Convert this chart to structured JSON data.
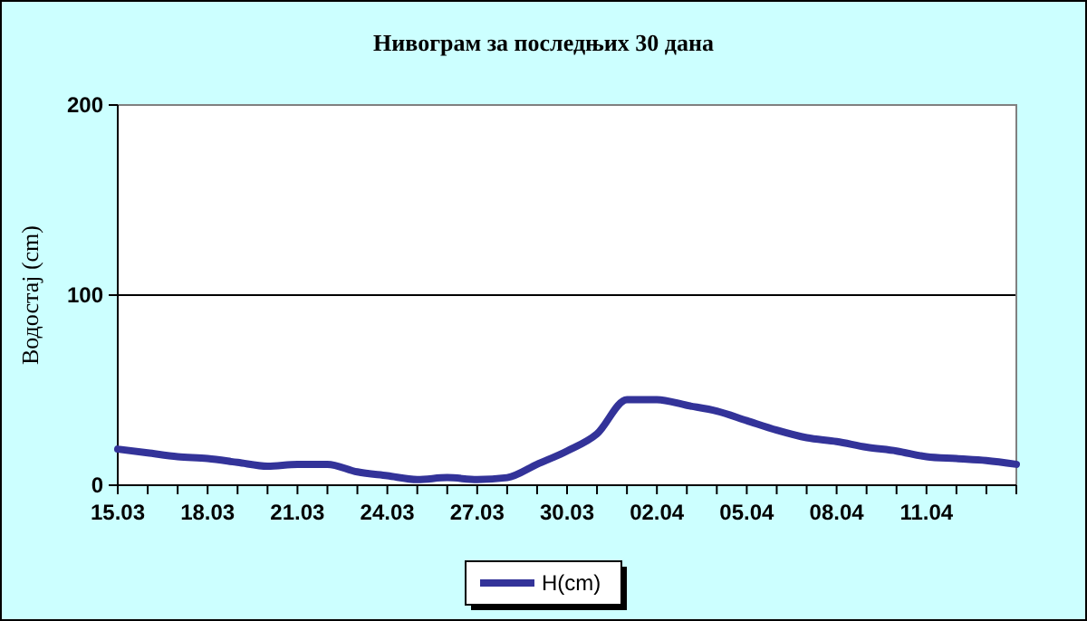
{
  "chart_data": {
    "type": "line",
    "title": "Нивограм за последњих 30 дана",
    "ylabel": "Водостај (cm)",
    "x": [
      "--03-15",
      "--03-16",
      "--03-17",
      "--03-18",
      "--03-19",
      "--03-20",
      "--03-21",
      "--03-22",
      "--03-23",
      "--03-24",
      "--03-25",
      "--03-26",
      "--03-27",
      "--03-28",
      "--03-29",
      "--03-30",
      "--03-31",
      "--04-01",
      "--04-02",
      "--04-03",
      "--04-04",
      "--04-05",
      "--04-06",
      "--04-07",
      "--04-08",
      "--04-09",
      "--04-10",
      "--04-11",
      "--04-12",
      "--04-13",
      "--04-14"
    ],
    "series": [
      {
        "name": "H(cm)",
        "color": "#333399",
        "values": [
          19,
          17,
          15,
          14,
          12,
          10,
          11,
          11,
          7,
          5,
          3,
          4,
          3,
          4,
          11,
          18,
          27,
          45,
          45,
          42,
          39,
          34,
          29,
          25,
          23,
          20,
          18,
          15,
          14,
          13,
          11
        ]
      }
    ],
    "xlim": [
      "--03-15",
      "--04-14"
    ],
    "xticks": [
      {
        "value": "--03-15",
        "label": "15.03"
      },
      {
        "value": "--03-16",
        "label": null
      },
      {
        "value": "--03-17",
        "label": null
      },
      {
        "value": "--03-18",
        "label": "18.03"
      },
      {
        "value": "--03-19",
        "label": null
      },
      {
        "value": "--03-20",
        "label": null
      },
      {
        "value": "--03-21",
        "label": "21.03"
      },
      {
        "value": "--03-22",
        "label": null
      },
      {
        "value": "--03-23",
        "label": null
      },
      {
        "value": "--03-24",
        "label": "24.03"
      },
      {
        "value": "--03-25",
        "label": null
      },
      {
        "value": "--03-26",
        "label": null
      },
      {
        "value": "--03-27",
        "label": "27.03"
      },
      {
        "value": "--03-28",
        "label": null
      },
      {
        "value": "--03-29",
        "label": null
      },
      {
        "value": "--03-30",
        "label": "30.03"
      },
      {
        "value": "--03-31",
        "label": null
      },
      {
        "value": "--04-01",
        "label": null
      },
      {
        "value": "--04-02",
        "label": "02.04"
      },
      {
        "value": "--04-03",
        "label": null
      },
      {
        "value": "--04-04",
        "label": null
      },
      {
        "value": "--04-05",
        "label": "05.04"
      },
      {
        "value": "--04-06",
        "label": null
      },
      {
        "value": "--04-07",
        "label": null
      },
      {
        "value": "--04-08",
        "label": "08.04"
      },
      {
        "value": "--04-09",
        "label": null
      },
      {
        "value": "--04-10",
        "label": null
      },
      {
        "value": "--04-11",
        "label": "11.04"
      },
      {
        "value": "--04-12",
        "label": null
      },
      {
        "value": "--04-13",
        "label": null
      },
      {
        "value": "--04-14",
        "label": null
      }
    ],
    "ylim": [
      0,
      200
    ],
    "yticks": [
      0,
      100,
      200
    ],
    "grid": "y",
    "legend": "bottom",
    "marker": "none",
    "line_style": "solid"
  }
}
